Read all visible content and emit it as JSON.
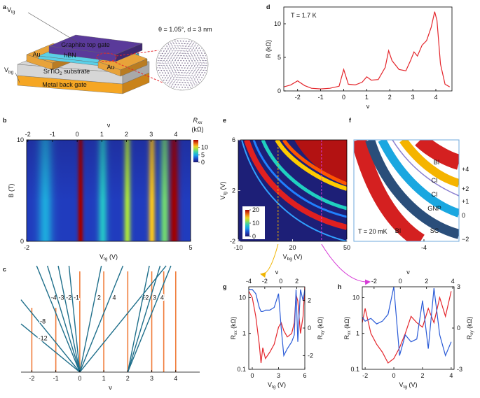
{
  "panel_labels": [
    "a",
    "b",
    "c",
    "d",
    "e",
    "f",
    "g",
    "h"
  ],
  "schematic": {
    "v_tg": [
      "V",
      "tg"
    ],
    "v_bg": [
      "V",
      "bg"
    ],
    "graphite": "Graphite top gate",
    "hbn": "hBN",
    "au_left": "Au",
    "au_right": "Au",
    "substrate": [
      "SrTiO",
      "2",
      " substrate"
    ],
    "back_gate": "Metal back gate",
    "twist": "θ = 1.05°, d = 3 nm"
  },
  "chart_data": [
    {
      "type": "line",
      "title": "T = 1.7 K",
      "xlabel": "ν",
      "ylabel": "R (kΩ)",
      "x": [
        -2.6,
        -2.3,
        -2.0,
        -1.7,
        -1.4,
        -1.0,
        -0.6,
        -0.2,
        0,
        0.2,
        0.5,
        0.8,
        1.0,
        1.2,
        1.5,
        1.8,
        1.95,
        2.1,
        2.4,
        2.7,
        2.9,
        3.05,
        3.2,
        3.4,
        3.6,
        3.8,
        3.95,
        4.05,
        4.2,
        4.4,
        4.6
      ],
      "series": [
        {
          "color": "#e4262c",
          "values": [
            0.6,
            0.9,
            1.5,
            0.8,
            0.4,
            0.3,
            0.4,
            0.7,
            3.2,
            1.0,
            0.9,
            1.3,
            2.1,
            1.6,
            1.7,
            3.5,
            6.0,
            4.5,
            3.2,
            3.0,
            4.5,
            5.8,
            5.2,
            6.8,
            7.5,
            9.5,
            11.8,
            10.5,
            4.0,
            1.0,
            0.6
          ]
        }
      ],
      "xlim": [
        -2.6,
        4.7
      ],
      "ylim": [
        0,
        12.5
      ],
      "xticks": [
        -2,
        -1,
        0,
        1,
        2,
        3,
        4
      ],
      "yticks": [
        0,
        5,
        10
      ]
    },
    {
      "type": "heatmap",
      "xlabel": [
        "V",
        "tg",
        " (V)"
      ],
      "ylabel": "B (T)",
      "x2label": "ν",
      "xlim": [
        -2,
        5
      ],
      "xticks": [
        -2,
        5
      ],
      "ylim": [
        0,
        10
      ],
      "yticks": [
        0,
        10
      ],
      "x2lim": [
        -2.05,
        4.6
      ],
      "x2ticks": [
        -2,
        -1,
        0,
        1,
        2,
        3,
        4
      ],
      "colorbar": {
        "label": [
          "R",
          "xx"
        ],
        "unit": "(kΩ)",
        "clim": [
          0,
          15
        ],
        "ticks": [
          0,
          5,
          10
        ]
      },
      "z_background": 2,
      "ridges": [
        {
          "x": -1.2,
          "z": 3,
          "width": 0.3
        },
        {
          "x": 0.3,
          "z": 13,
          "width": 0.12
        },
        {
          "x": 1.25,
          "z": 4,
          "width": 0.2
        },
        {
          "x": 2.3,
          "z": 7,
          "width": 0.15
        },
        {
          "x": 3.35,
          "z": 9,
          "width": 0.15
        },
        {
          "x": 3.9,
          "z": 6,
          "width": 0.2
        },
        {
          "x": 4.3,
          "z": 13,
          "width": 0.2
        }
      ]
    },
    {
      "type": "fan",
      "xlabel": "ν",
      "xlim": [
        -2.45,
        5
      ],
      "xticks": [
        -2,
        -1,
        0,
        1,
        2,
        3,
        4
      ],
      "vertical_lines": [
        -2,
        -1,
        0,
        1,
        2,
        3,
        3.5,
        4
      ],
      "vertical_color": "#f07c3a",
      "fan_color": "#1f6f8b",
      "fans": [
        {
          "origin": 0,
          "chern": [
            -12,
            -8,
            -4,
            -3,
            -2,
            -1,
            2,
            4,
            8
          ]
        },
        {
          "origin": 2,
          "chern": [
            2,
            3,
            4
          ]
        }
      ]
    },
    {
      "type": "heatmap",
      "xlabel": [
        "V",
        "bg",
        " (V)"
      ],
      "ylabel": [
        "V",
        "tg",
        " (V)"
      ],
      "xlim": [
        -10,
        50
      ],
      "xticks": [
        -10,
        20,
        50
      ],
      "ylim": [
        -2,
        6
      ],
      "yticks": [
        -2,
        2,
        6
      ],
      "colorbar": {
        "clim": [
          0,
          20
        ],
        "ticks": [
          0,
          10,
          20
        ]
      },
      "cuts": [
        {
          "x": 12,
          "color": "#f0b400"
        },
        {
          "x": 36,
          "color": "#d63ad6"
        }
      ]
    },
    {
      "type": "schematic",
      "title": "T = 20 mK",
      "xlim": [
        -6,
        -3
      ],
      "xticks": [
        -4
      ],
      "band_labels": [
        "BI",
        "CI",
        "CI",
        "GNP",
        "SC",
        "BI"
      ],
      "filling_labels": [
        "+4",
        "+2",
        "+1",
        "0",
        "−2"
      ]
    },
    {
      "type": "line",
      "xlabel": [
        "V",
        "tg",
        " (V)"
      ],
      "ylabel": [
        "R",
        "xx",
        " (kΩ)"
      ],
      "y2label": [
        "R",
        "xy",
        " (kΩ)"
      ],
      "x2label": "ν",
      "log_y": true,
      "x": [
        -0.4,
        0,
        0.4,
        0.8,
        1.0,
        1.2,
        1.5,
        2,
        2.5,
        3,
        3.3,
        3.6,
        4,
        4.5,
        4.8,
        5,
        5.2,
        5.5,
        5.8,
        6
      ],
      "series": [
        {
          "color": "#e4262c",
          "values": [
            15,
            10,
            3,
            0.5,
            0.15,
            0.4,
            0.2,
            0.3,
            0.5,
            1.5,
            2,
            1.2,
            0.8,
            1,
            2,
            12,
            8,
            1,
            3,
            20
          ]
        },
        {
          "color": "#2a5bd7",
          "axis": "y2",
          "values": [
            2.8,
            2.8,
            2.5,
            1.5,
            1.2,
            1.2,
            1.3,
            1.3,
            1.5,
            2.5,
            0,
            -2,
            -1.5,
            -1,
            -0.5,
            2.8,
            -1,
            2.8,
            2,
            2.8
          ]
        }
      ],
      "xlim": [
        -0.4,
        6
      ],
      "xticks": [
        0,
        3,
        6
      ],
      "x2lim": [
        -4,
        3
      ],
      "x2ticks": [
        -4,
        -2,
        0,
        2
      ],
      "ylim": [
        0.1,
        20
      ],
      "yticks": [
        0.1,
        1,
        10
      ],
      "y2lim": [
        -3,
        3
      ],
      "y2ticks": [
        -2,
        0,
        2
      ]
    },
    {
      "type": "line",
      "xlabel": [
        "V",
        "tg",
        " (V)"
      ],
      "ylabel": [
        "R",
        "xx",
        " (kΩ)"
      ],
      "y2label": [
        "R",
        "xy",
        " (kΩ)"
      ],
      "x2label": "ν",
      "log_y": true,
      "x": [
        -2.2,
        -2,
        -1.6,
        -1.2,
        -0.8,
        -0.4,
        0,
        0.4,
        0.8,
        1.2,
        1.6,
        2,
        2.4,
        2.8,
        3.2,
        3.6,
        4.0
      ],
      "series": [
        {
          "color": "#e4262c",
          "values": [
            2,
            5,
            1,
            0.5,
            0.3,
            0.15,
            0.2,
            0.4,
            1,
            3,
            2,
            1.5,
            5,
            2,
            10,
            3,
            15
          ]
        },
        {
          "color": "#2a5bd7",
          "axis": "y2",
          "values": [
            0.8,
            0.5,
            0.7,
            0.3,
            0.5,
            1,
            3,
            -2,
            -0.5,
            -1,
            -0.8,
            2,
            -1.5,
            2.9,
            -0.5,
            -2,
            -1
          ]
        }
      ],
      "xlim": [
        -2.2,
        4.2
      ],
      "xticks": [
        -2,
        0,
        2,
        4
      ],
      "x2lim": [
        -2.9,
        4.1
      ],
      "x2ticks": [
        -2,
        0,
        2,
        4
      ],
      "ylim": [
        0.1,
        20
      ],
      "yticks": [
        0.1,
        1,
        10
      ],
      "y2lim": [
        -3,
        3
      ],
      "y2ticks": [
        -3,
        0,
        3
      ]
    }
  ]
}
